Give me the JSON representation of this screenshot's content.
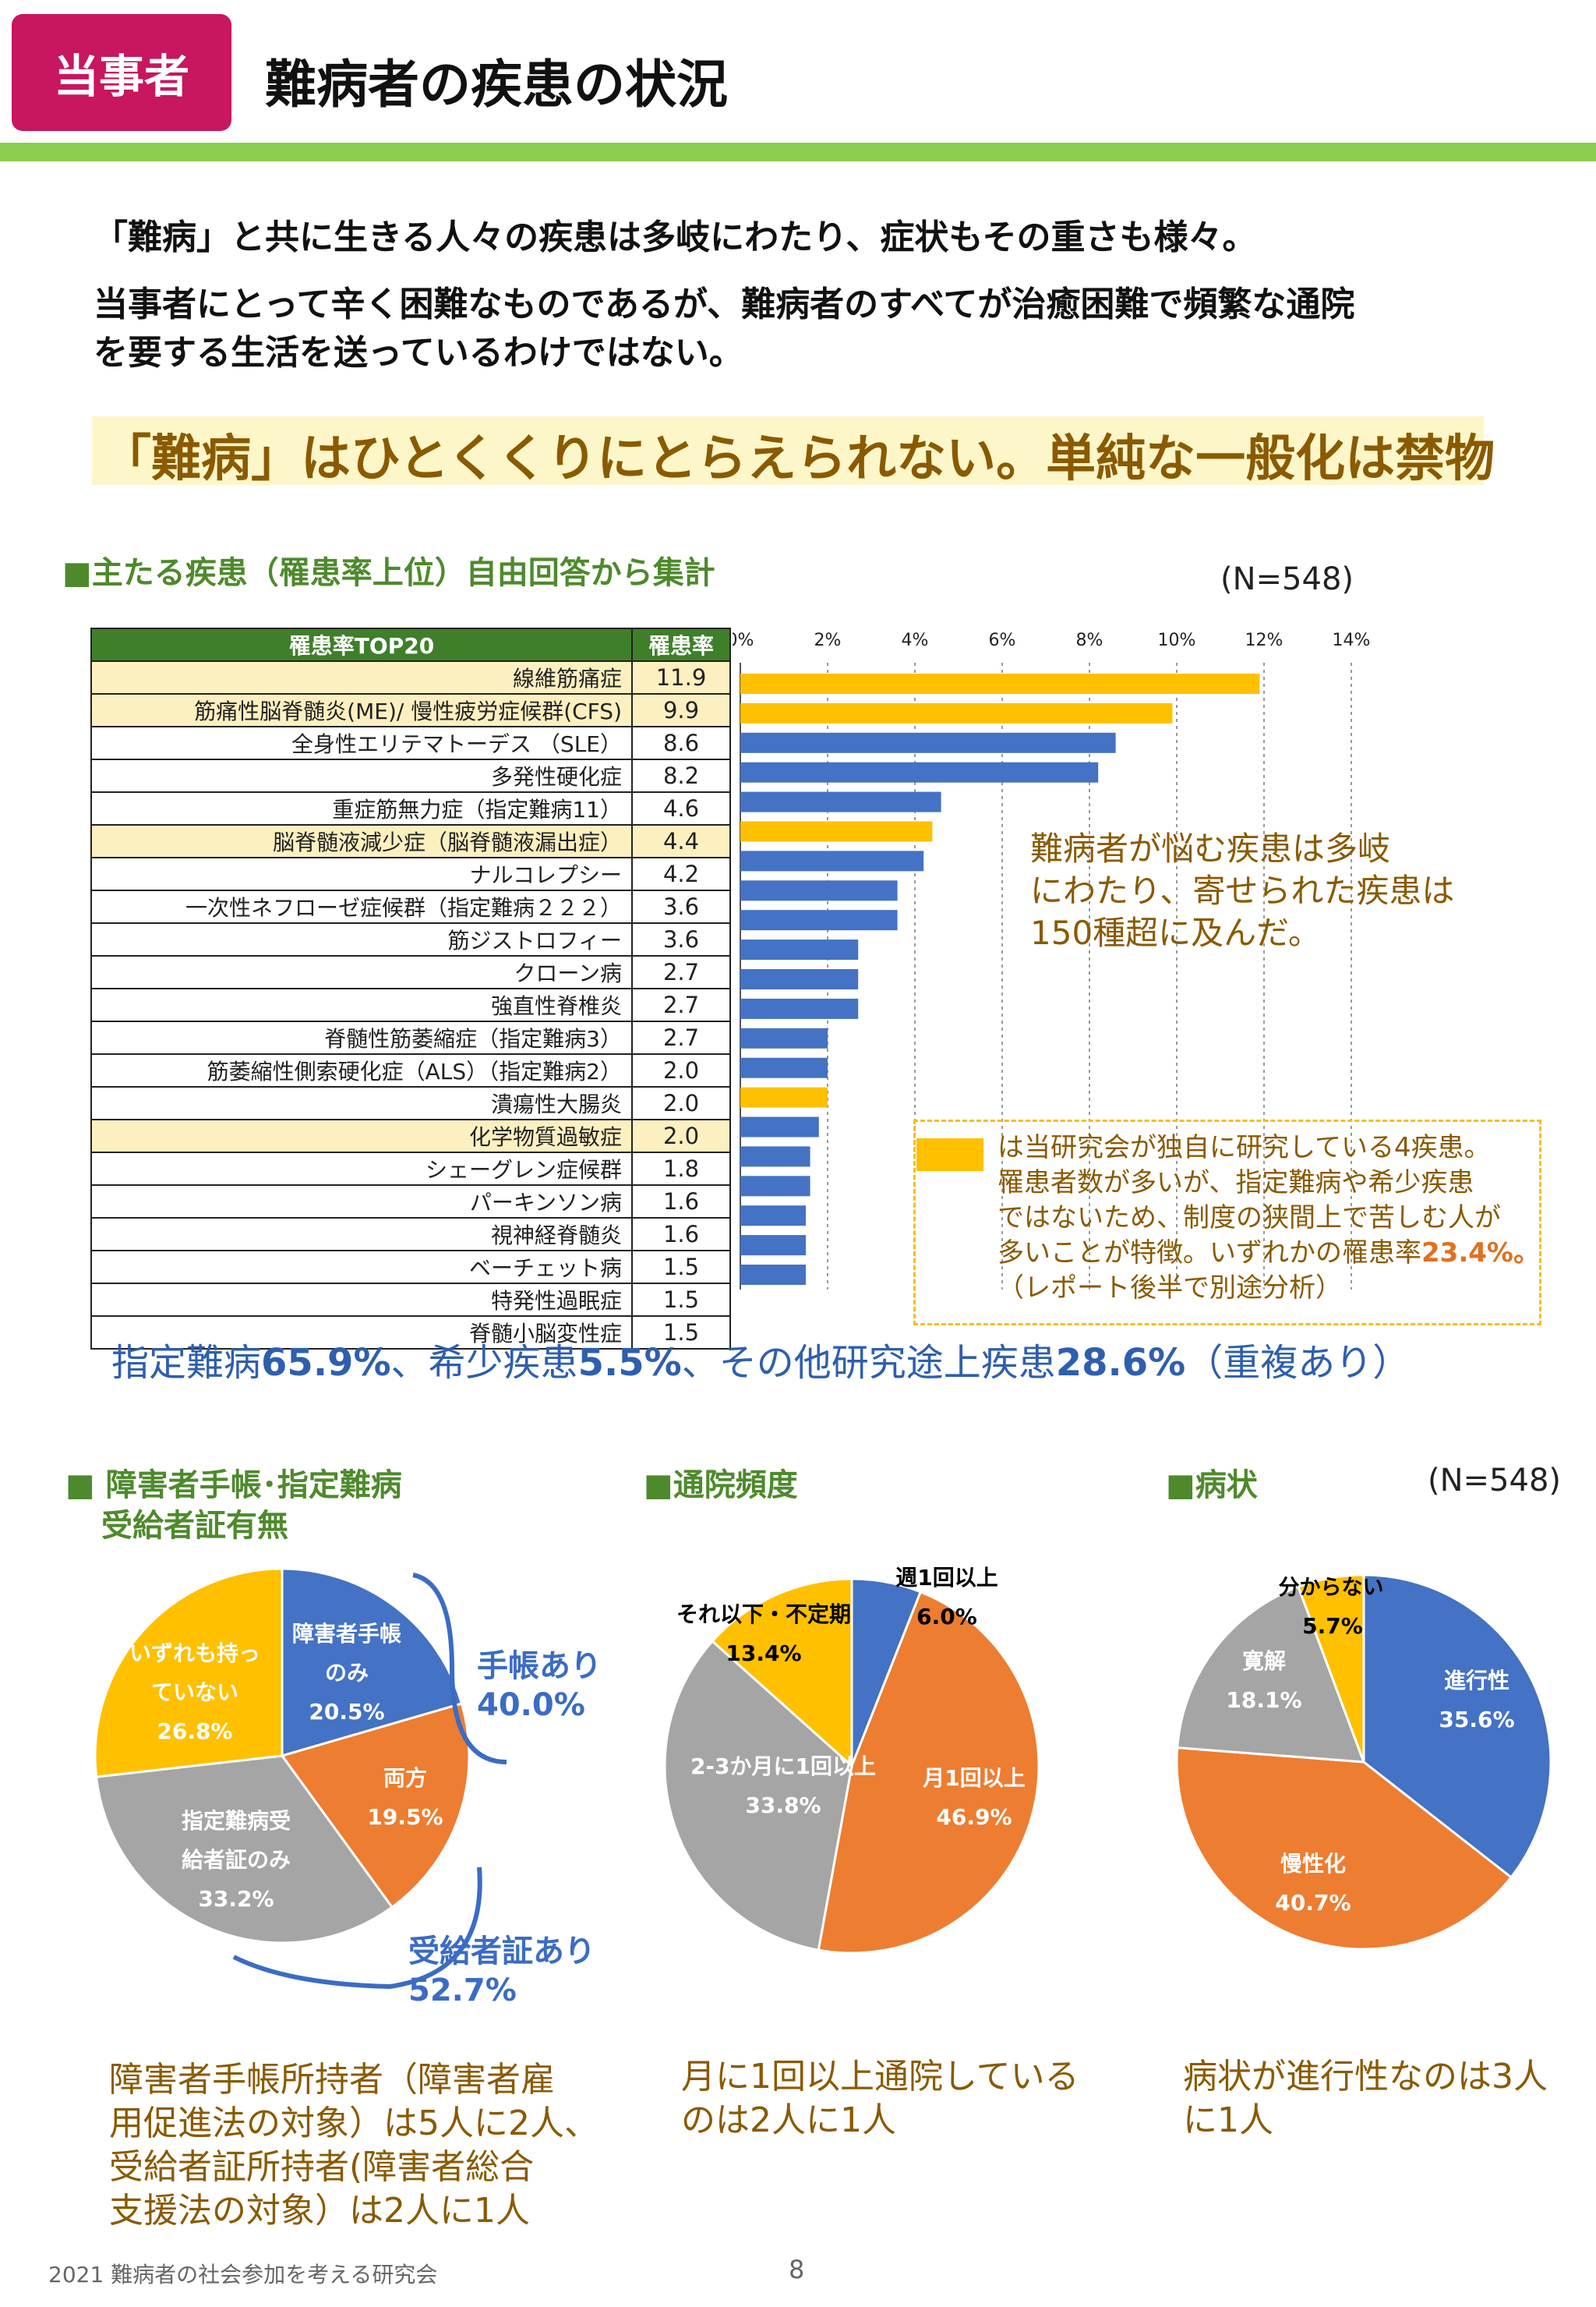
{
  "header": {
    "badge": "当事者",
    "title": "難病者の疾患の状況"
  },
  "intro": {
    "line1": "「難病」と共に生きる人々の疾患は多岐にわたり、症状もその重さも様々。",
    "line2": "当事者にとって辛く困難なものであるが、難病者のすべてが治癒困難で頻繁な通院",
    "line3": "を要する生活を送っているわけではない。",
    "highlight": "「難病」はひとくくりにとらえられない。単純な一般化は禁物"
  },
  "section1": {
    "title": "■主たる疾患（罹患率上位）自由回答から集計",
    "n_label": "(N=548)",
    "table_header_name": "罹患率TOP20",
    "table_header_value": "罹患率"
  },
  "chart_data": [
    {
      "type": "bar",
      "orientation": "horizontal",
      "title": "主たる疾患（罹患率上位）自由回答から集計",
      "xlim": [
        0,
        14
      ],
      "xticks": [
        "0%",
        "2%",
        "4%",
        "6%",
        "8%",
        "10%",
        "12%",
        "14%"
      ],
      "unit": "%",
      "grid": true,
      "colors": {
        "highlight": "#ffc000",
        "normal": "#4472c4"
      },
      "categories": [
        "線維筋痛症",
        "筋痛性脳脊髄炎(ME)/ 慢性疲労症候群(CFS)",
        "全身性エリテマトーデス （SLE）",
        "多発性硬化症",
        "重症筋無力症（指定難病11）",
        "脳脊髄液減少症（脳脊髄液漏出症）",
        "ナルコレプシー",
        "一次性ネフローゼ症候群（指定難病２２２）",
        "筋ジストロフィー",
        "クローン病",
        "強直性脊椎炎",
        "脊髄性筋萎縮症（指定難病3）",
        "筋萎縮性側索硬化症（ALS）（指定難病2）",
        "潰瘍性大腸炎",
        "化学物質過敏症",
        "シェーグレン症候群",
        "パーキンソン病",
        "視神経脊髄炎",
        "ベーチェット病",
        "特発性過眠症",
        "脊髄小脳変性症"
      ],
      "values": [
        11.9,
        9.9,
        8.6,
        8.2,
        4.6,
        4.4,
        4.2,
        3.6,
        3.6,
        2.7,
        2.7,
        2.7,
        2.0,
        2.0,
        2.0,
        1.8,
        1.6,
        1.6,
        1.5,
        1.5,
        1.5
      ],
      "value_labels": [
        "11.9",
        "9.9",
        "8.6",
        "8.2",
        "4.6",
        "4.4",
        "4.2",
        "3.6",
        "3.6",
        "2.7",
        "2.7",
        "2.7",
        "2.0",
        "2.0",
        "2.0",
        "1.8",
        "1.6",
        "1.6",
        "1.5",
        "1.5",
        "1.5"
      ],
      "highlighted": [
        true,
        true,
        false,
        false,
        false,
        true,
        false,
        false,
        false,
        false,
        false,
        false,
        false,
        false,
        true,
        false,
        false,
        false,
        false,
        false,
        false
      ]
    },
    {
      "type": "pie",
      "title": "障害者手帳･指定難病受給者証有無",
      "slices": [
        {
          "label": "障害者手帳のみ",
          "value": 20.5,
          "color": "#4472c4"
        },
        {
          "label": "両方",
          "value": 19.5,
          "color": "#ed7d31"
        },
        {
          "label": "指定難病受給者証のみ",
          "value": 33.2,
          "color": "#a5a5a5"
        },
        {
          "label": "いずれも持っていない",
          "value": 26.8,
          "color": "#ffc000"
        }
      ]
    },
    {
      "type": "pie",
      "title": "通院頻度",
      "slices": [
        {
          "label": "週1回以上",
          "value": 6.0,
          "color": "#4472c4"
        },
        {
          "label": "月1回以上",
          "value": 46.9,
          "color": "#ed7d31"
        },
        {
          "label": "2-3か月に1回以上",
          "value": 33.8,
          "color": "#a5a5a5"
        },
        {
          "label": "それ以下・不定期",
          "value": 13.4,
          "color": "#ffc000"
        }
      ]
    },
    {
      "type": "pie",
      "title": "病状",
      "slices": [
        {
          "label": "進行性",
          "value": 35.6,
          "color": "#4472c4"
        },
        {
          "label": "慢性化",
          "value": 40.7,
          "color": "#ed7d31"
        },
        {
          "label": "寛解",
          "value": 18.1,
          "color": "#a5a5a5"
        },
        {
          "label": "分からない",
          "value": 5.7,
          "color": "#ffc000"
        }
      ]
    }
  ],
  "note1": {
    "line1": "難病者が悩む疾患は多岐",
    "line2": "にわたり、寄せられた疾患は",
    "line3": "150種超に及んだ。"
  },
  "legend": {
    "line1": "は当研究会が独自に研究している4疾患。",
    "line2": "罹患者数が多いが、指定難病や希少疾患",
    "line3": "ではないため、制度の狭間上で苦しむ人が",
    "line4_prefix": "多いことが特徴。いずれかの罹患率",
    "line4_value": "23.4%。",
    "line5": "（レポート後半で別途分析）"
  },
  "summary": {
    "t1": "指定難病",
    "v1": "65.9%",
    "t2": "、希少疾患",
    "v2": "5.5%",
    "t3": "、その他研究途上疾患",
    "v3": "28.6%",
    "t4": "（重複あり）"
  },
  "section2": {
    "pie1_title_line1": "■ 障害者手帳･指定難病",
    "pie1_title_line2": "受給者証有無",
    "pie2_title": "■通院頻度",
    "pie3_title": "■病状",
    "n_label": "(N=548)"
  },
  "pie1_labels": {
    "s1a": "障害者手帳",
    "s1b": "のみ",
    "s1v": "20.5%",
    "s2a": "両方",
    "s2v": "19.5%",
    "s3a": "指定難病受",
    "s3b": "給者証のみ",
    "s3v": "33.2%",
    "s4a": "いずれも持っ",
    "s4b": "ていない",
    "s4v": "26.8%",
    "callout1a": "手帳あり",
    "callout1b": "40.0%",
    "callout2a": "受給者証あり",
    "callout2b": "52.7%"
  },
  "pie2_labels": {
    "s1a": "週1回以上",
    "s1v": "6.0%",
    "s2a": "月1回以上",
    "s2v": "46.9%",
    "s3a": "2-3か月に1回以上",
    "s3v": "33.8%",
    "s4a": "それ以下・不定期",
    "s4v": "13.4%"
  },
  "pie3_labels": {
    "s1a": "進行性",
    "s1v": "35.6%",
    "s2a": "慢性化",
    "s2v": "40.7%",
    "s3a": "寛解",
    "s3v": "18.1%",
    "s4a": "分からない",
    "s4v": "5.7%"
  },
  "captions": {
    "c1_l1": "障害者手帳所持者（障害者雇",
    "c1_l2": "用促進法の対象）は5人に2人、",
    "c1_l3": "受給者証所持者(障害者総合",
    "c1_l4": "支援法の対象）は2人に1人",
    "c2_l1": "月に1回以上通院している",
    "c2_l2": "のは2人に1人",
    "c3_l1": "病状が進行性なのは3人",
    "c3_l2": "に1人"
  },
  "footer": {
    "text": "2021 難病者の社会参加を考える研究会",
    "page": "8"
  }
}
